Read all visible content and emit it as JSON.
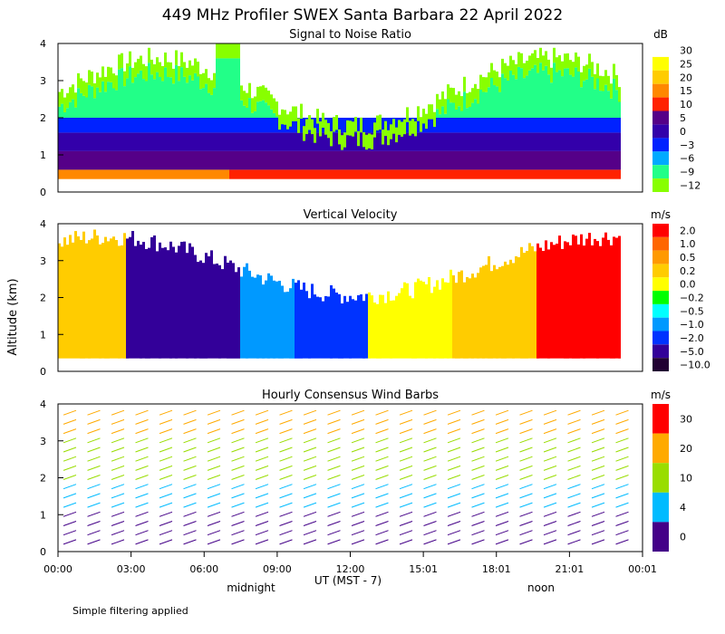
{
  "title": "449 MHz Profiler SWEX Santa Barbara 22 April 2022",
  "ylabel": "Altitude (km)",
  "xlabel": "UT  (MST - 7)",
  "footer": "Simple filtering applied",
  "local_time_labels": {
    "midnight": "midnight",
    "noon": "noon"
  },
  "x_ticks": [
    "00:00",
    "03:00",
    "06:00",
    "09:00",
    "12:00",
    "15:01",
    "18:01",
    "21:01",
    "00:01"
  ],
  "chart_data": [
    {
      "type": "heatmap",
      "title": "Signal to Noise Ratio",
      "ylim": [
        0,
        4
      ],
      "y_ticks": [
        "0",
        "1",
        "2",
        "3",
        "4"
      ],
      "colorbar": {
        "unit": "dB",
        "labels": [
          "30",
          "25",
          "20",
          "15",
          "10",
          "5",
          "0",
          "−3",
          "−6",
          "−9",
          "−12"
        ]
      }
    },
    {
      "type": "heatmap",
      "title": "Vertical Velocity",
      "ylim": [
        0,
        4
      ],
      "y_ticks": [
        "0",
        "1",
        "2",
        "3",
        "4"
      ],
      "colorbar": {
        "unit": "m/s",
        "labels": [
          "2.0",
          "1.0",
          "0.5",
          "0.2",
          "0.0",
          "−0.2",
          "−0.5",
          "−1.0",
          "−2.0",
          "−5.0",
          "−10.0"
        ]
      }
    },
    {
      "type": "barbs",
      "title": "Hourly Consensus Wind Barbs",
      "ylim": [
        0,
        4
      ],
      "y_ticks": [
        "0",
        "1",
        "2",
        "3",
        "4"
      ],
      "colorbar": {
        "unit": "m/s",
        "labels": [
          "30",
          "20",
          "10",
          "4",
          "0"
        ]
      }
    }
  ],
  "colors": {
    "snr": [
      "#ffffff",
      "#ffff00",
      "#ffcc00",
      "#ff8800",
      "#ff2200",
      "#550088",
      "#3300aa",
      "#0022ff",
      "#00aaff",
      "#22ff88",
      "#88ff00"
    ],
    "vv": [
      "#ff0000",
      "#ff6600",
      "#ff9900",
      "#ffcc00",
      "#ffff00",
      "#00ff00",
      "#00ffff",
      "#0099ff",
      "#0033ff",
      "#330099",
      "#220033"
    ],
    "wind": [
      "#ff0000",
      "#ffaa00",
      "#99dd00",
      "#00bbff",
      "#440088"
    ]
  }
}
